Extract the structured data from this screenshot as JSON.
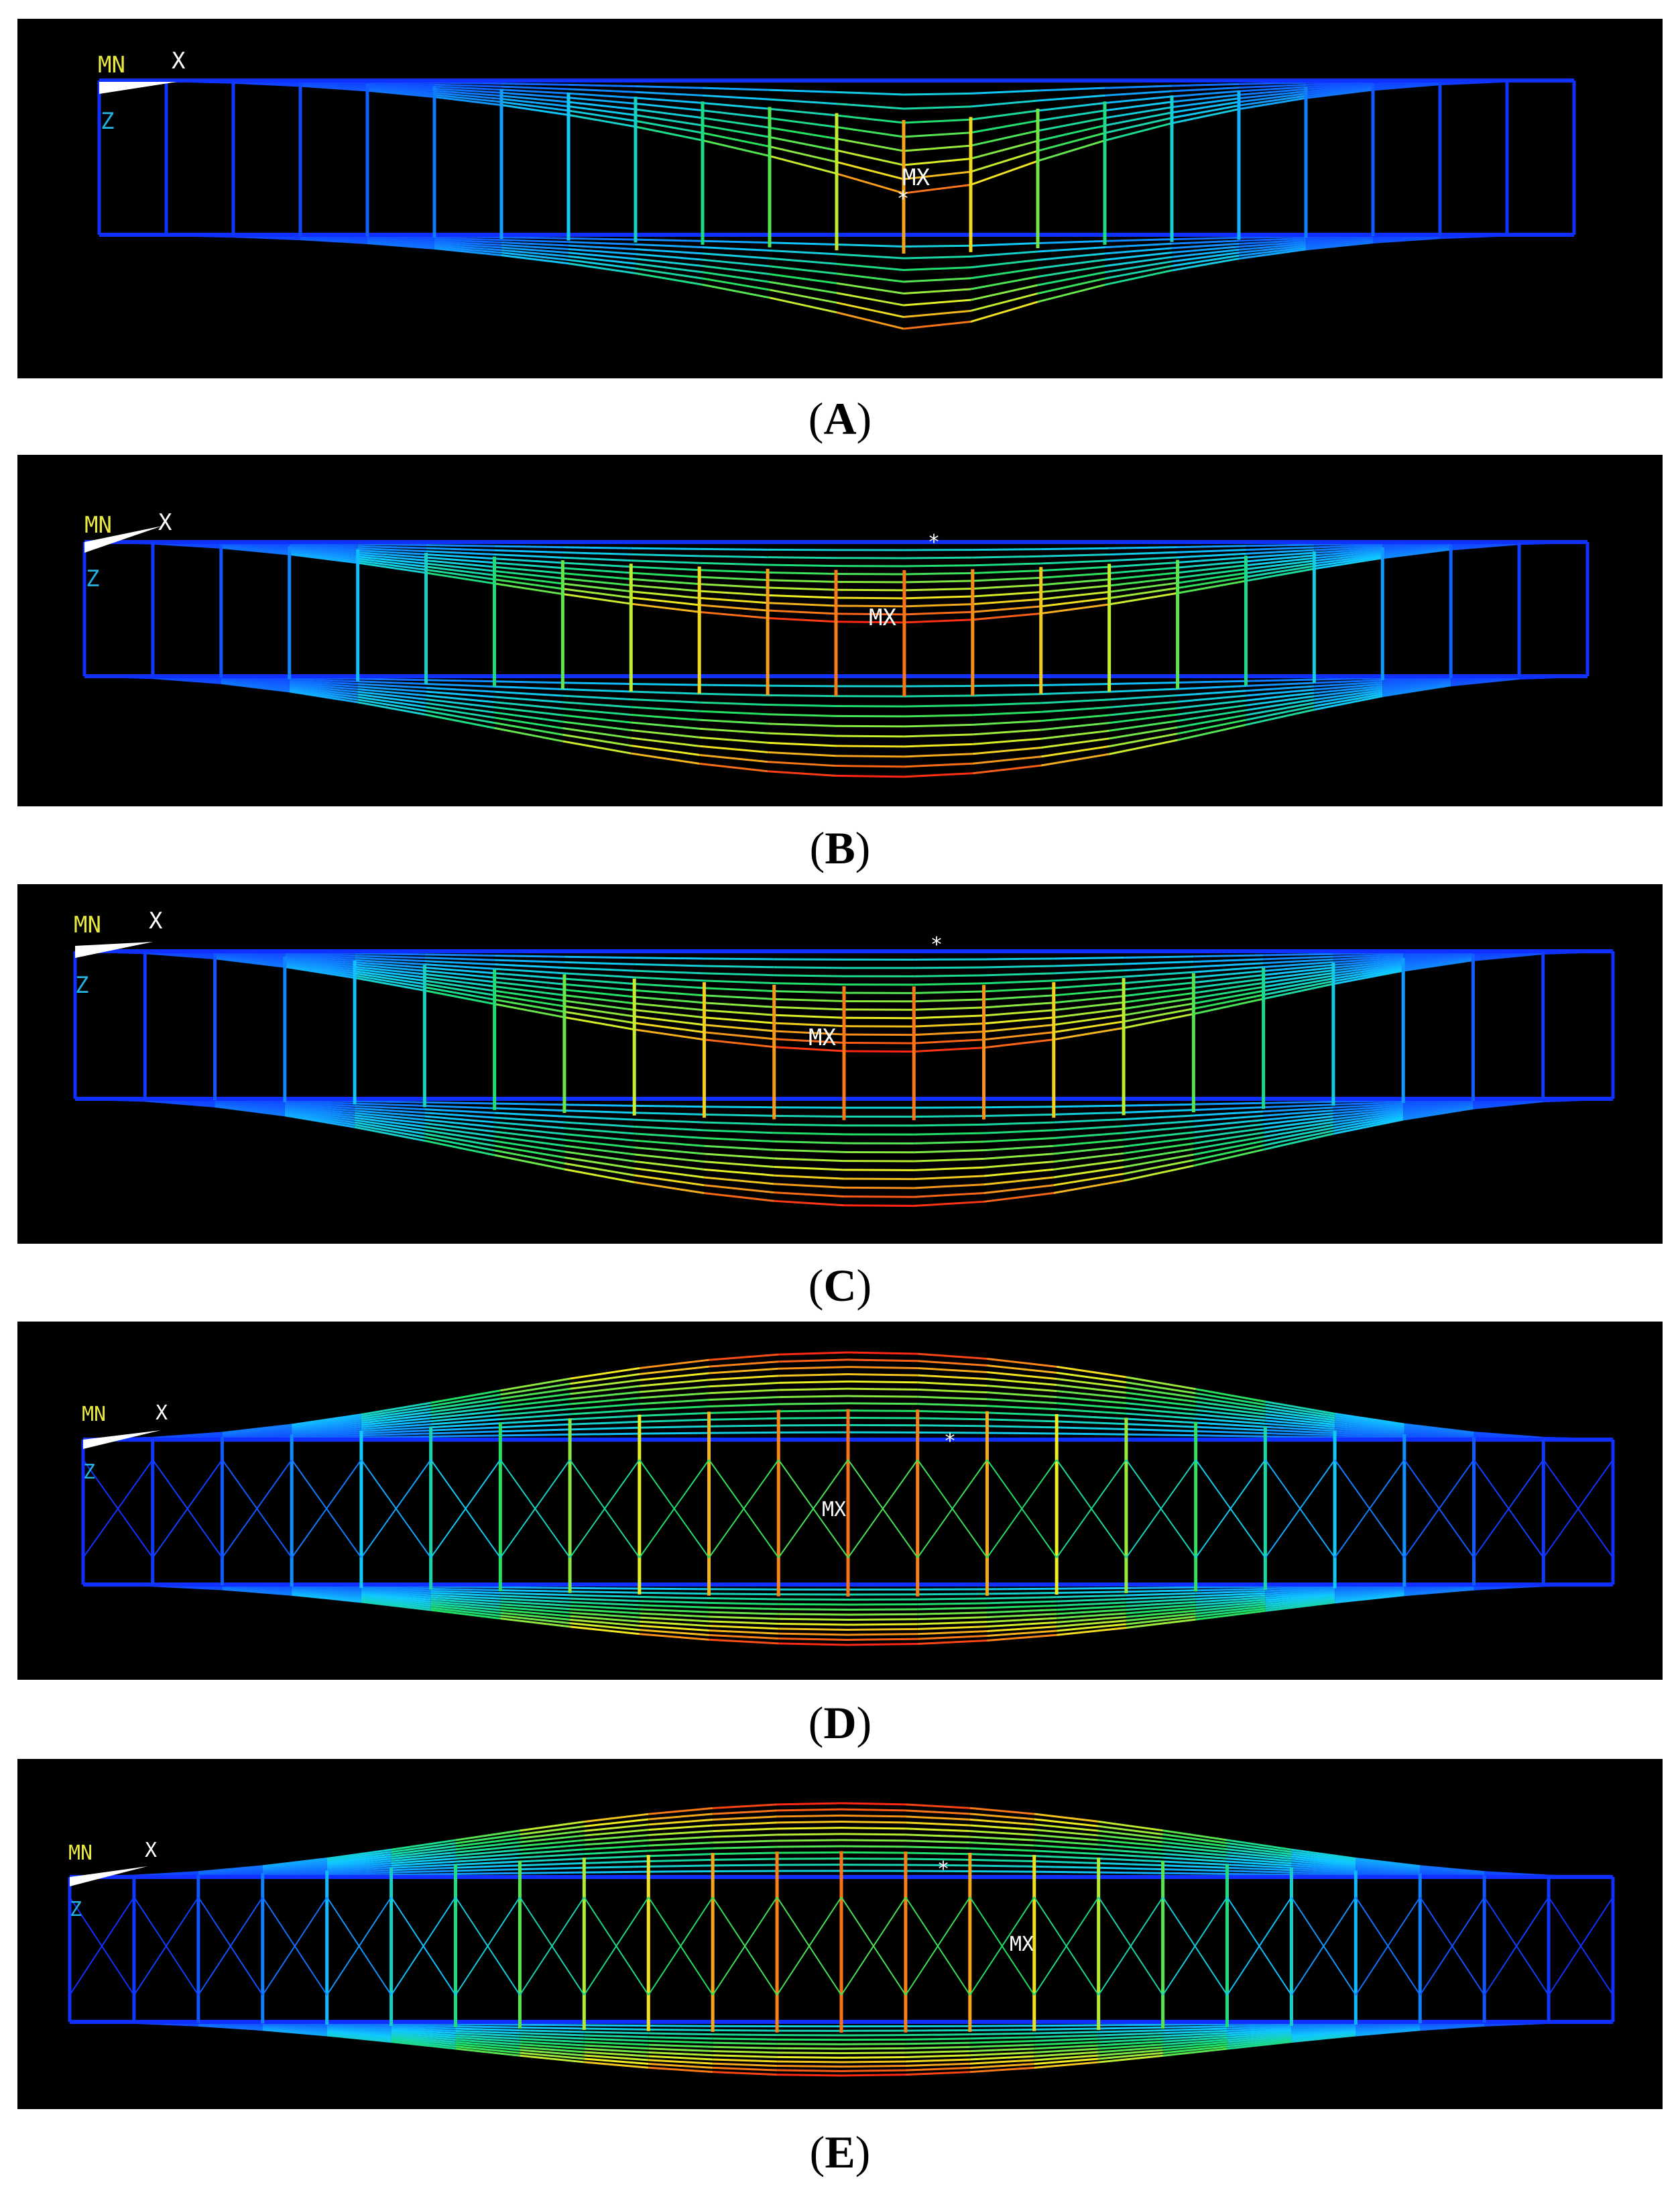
{
  "panels": [
    {
      "id": "A",
      "caption_letter": "A",
      "label_mn": "MN",
      "label_x": "X",
      "label_z": "Z",
      "label_mx": "MX"
    },
    {
      "id": "B",
      "caption_letter": "B",
      "label_mn": "MN",
      "label_x": "X",
      "label_z": "Z",
      "label_mx": "MX"
    },
    {
      "id": "C",
      "caption_letter": "C",
      "label_mn": "MN",
      "label_x": "X",
      "label_z": "Z",
      "label_mx": "MX"
    },
    {
      "id": "D",
      "caption_letter": "D",
      "label_mn": "MN",
      "label_x": "X",
      "label_z": "Z",
      "label_mx": "MX"
    },
    {
      "id": "E",
      "caption_letter": "E",
      "label_mn": "MN",
      "label_x": "X",
      "label_z": "Z",
      "label_mx": "MX"
    }
  ],
  "colors": {
    "background": "#000000",
    "low": "#1030ff",
    "mid_low": "#10c8ff",
    "mid": "#20e060",
    "mid_high": "#f0f020",
    "high": "#ff2010",
    "label_yellow": "#e8e840",
    "label_white": "#ffffff",
    "label_cyan": "#20b0e0"
  }
}
